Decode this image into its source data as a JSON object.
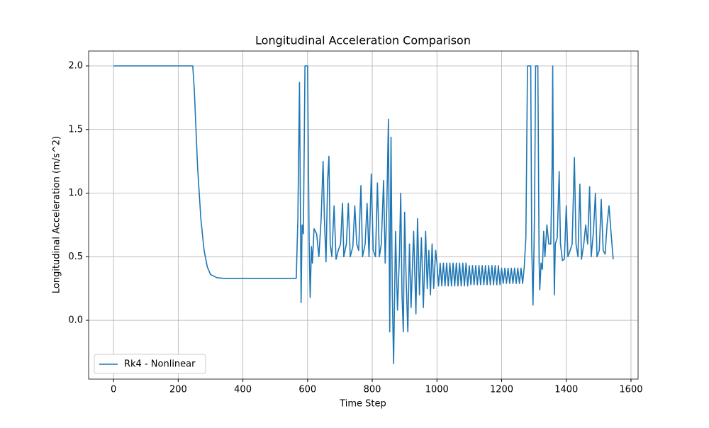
{
  "chart_data": {
    "type": "line",
    "title": "Longitudinal Acceleration Comparison",
    "x_label": "Time Step",
    "y_label": "Longitudinal Acceleration (m/s^2)",
    "x": [
      0,
      245,
      250,
      260,
      270,
      280,
      290,
      300,
      320,
      340,
      565,
      570,
      575,
      580,
      583,
      587,
      592,
      600,
      605,
      608,
      612,
      615,
      620,
      628,
      635,
      642,
      648,
      652,
      657,
      662,
      666,
      670,
      675,
      682,
      688,
      695,
      702,
      708,
      712,
      720,
      726,
      732,
      740,
      746,
      752,
      758,
      765,
      770,
      778,
      784,
      790,
      797,
      803,
      810,
      816,
      822,
      828,
      835,
      840,
      845,
      850,
      854,
      858,
      862,
      866,
      872,
      878,
      884,
      888,
      892,
      896,
      900,
      905,
      910,
      915,
      920,
      928,
      935,
      940,
      946,
      952,
      958,
      965,
      970,
      975,
      980,
      985,
      990,
      996,
      1000,
      1005,
      1010,
      1015,
      1020,
      1025,
      1030,
      1035,
      1040,
      1045,
      1050,
      1055,
      1060,
      1065,
      1070,
      1075,
      1080,
      1085,
      1090,
      1095,
      1100,
      1105,
      1110,
      1115,
      1120,
      1125,
      1130,
      1135,
      1140,
      1145,
      1150,
      1155,
      1160,
      1165,
      1170,
      1175,
      1180,
      1185,
      1190,
      1195,
      1200,
      1205,
      1210,
      1215,
      1220,
      1225,
      1230,
      1235,
      1240,
      1245,
      1250,
      1255,
      1260,
      1265,
      1270,
      1275,
      1280,
      1290,
      1293,
      1297,
      1300,
      1302,
      1305,
      1312,
      1316,
      1318,
      1322,
      1326,
      1330,
      1334,
      1340,
      1346,
      1352,
      1356,
      1358,
      1360,
      1363,
      1366,
      1372,
      1378,
      1382,
      1388,
      1394,
      1400,
      1405,
      1412,
      1418,
      1425,
      1430,
      1436,
      1442,
      1447,
      1454,
      1460,
      1466,
      1472,
      1477,
      1484,
      1490,
      1495,
      1502,
      1508,
      1514,
      1520,
      1526,
      1532,
      1538,
      1545
    ],
    "series": [
      {
        "name": "Rk4 - Nonlinear",
        "color": "#1f77b4",
        "values": [
          2,
          2,
          1.8,
          1.2,
          0.8,
          0.55,
          0.42,
          0.36,
          0.335,
          0.33,
          0.33,
          0.8,
          1.87,
          0.14,
          0.75,
          0.68,
          2,
          2,
          0.6,
          0.18,
          0.58,
          0.45,
          0.72,
          0.68,
          0.5,
          0.8,
          1.25,
          0.8,
          0.46,
          1.1,
          1.29,
          0.6,
          0.5,
          0.9,
          0.48,
          0.55,
          0.6,
          0.92,
          0.5,
          0.6,
          0.92,
          0.5,
          0.58,
          0.9,
          0.6,
          0.55,
          1.06,
          0.5,
          0.6,
          0.92,
          0.5,
          1.15,
          0.55,
          0.5,
          1.08,
          0.5,
          0.6,
          1.1,
          0.45,
          0.9,
          1.58,
          -0.09,
          1.44,
          0.2,
          -0.34,
          0.7,
          0.08,
          0.5,
          1.0,
          0.2,
          -0.09,
          0.85,
          0.3,
          -0.09,
          0.6,
          0.1,
          0.7,
          0.05,
          0.8,
          0.2,
          0.65,
          0.1,
          0.7,
          0.25,
          0.55,
          0.2,
          0.6,
          0.25,
          0.55,
          0.45,
          0.27,
          0.45,
          0.27,
          0.45,
          0.27,
          0.45,
          0.27,
          0.45,
          0.27,
          0.45,
          0.27,
          0.45,
          0.27,
          0.45,
          0.27,
          0.45,
          0.27,
          0.45,
          0.27,
          0.43,
          0.28,
          0.43,
          0.28,
          0.43,
          0.28,
          0.43,
          0.28,
          0.43,
          0.28,
          0.43,
          0.28,
          0.43,
          0.28,
          0.43,
          0.28,
          0.43,
          0.28,
          0.43,
          0.28,
          0.41,
          0.29,
          0.41,
          0.29,
          0.41,
          0.29,
          0.41,
          0.29,
          0.41,
          0.29,
          0.41,
          0.29,
          0.41,
          0.29,
          0.42,
          0.65,
          2,
          2,
          0.6,
          0.12,
          0.55,
          0.9,
          2,
          2,
          0.45,
          0.24,
          0.45,
          0.4,
          0.7,
          0.5,
          0.75,
          0.6,
          0.6,
          1.2,
          2,
          1.0,
          0.2,
          0.6,
          0.65,
          1.17,
          0.6,
          0.47,
          0.48,
          0.9,
          0.5,
          0.55,
          0.6,
          1.28,
          0.6,
          0.5,
          1.07,
          0.48,
          0.6,
          0.75,
          0.6,
          1.05,
          0.5,
          0.7,
          1.0,
          0.5,
          0.55,
          0.95,
          0.55,
          0.52,
          0.75,
          0.9,
          0.7,
          0.48
        ]
      }
    ],
    "xlim": [
      -77,
      1622
    ],
    "ylim": [
      -0.462,
      2.117
    ],
    "xticks": [
      0,
      200,
      400,
      600,
      800,
      1000,
      1200,
      1400,
      1600
    ],
    "yticks": [
      {
        "value": 0,
        "label": "0.0"
      },
      0.5,
      {
        "value": 1,
        "label": "1.0"
      },
      1.5,
      {
        "value": 2,
        "label": "2.0"
      }
    ],
    "grid": true,
    "legend": "lower left"
  }
}
